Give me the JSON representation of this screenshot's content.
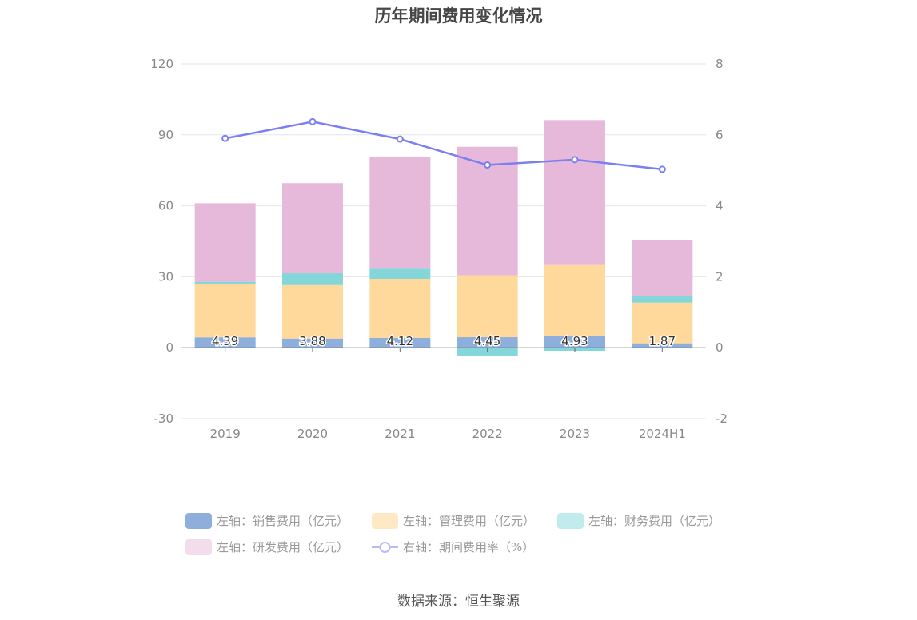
{
  "chart_data": {
    "type": "bar",
    "title": "历年期间费用变化情况",
    "categories": [
      "2019",
      "2020",
      "2021",
      "2022",
      "2023",
      "2024H1"
    ],
    "stacked": true,
    "series": [
      {
        "name": "左轴：销售费用（亿元）",
        "axis": "left",
        "type": "bar",
        "color": "#8eaedc",
        "values": [
          4.39,
          3.88,
          4.12,
          4.45,
          4.93,
          1.87
        ],
        "labels": [
          "4.39",
          "3.88",
          "4.12",
          "4.45",
          "4.93",
          "1.87"
        ]
      },
      {
        "name": "左轴：管理费用（亿元）",
        "axis": "left",
        "type": "bar",
        "color": "#ffd99b",
        "values": [
          22.5,
          22.6,
          25.0,
          26.2,
          30.0,
          17.2
        ]
      },
      {
        "name": "左轴：财务费用（亿元）",
        "axis": "left",
        "type": "bar",
        "color": "#84d6d9",
        "values": [
          1.0,
          5.0,
          4.3,
          -3.3,
          -1.3,
          2.8
        ]
      },
      {
        "name": "左轴：研发费用（亿元）",
        "axis": "left",
        "type": "bar",
        "color": "#e6b9db",
        "values": [
          33.2,
          38.1,
          47.4,
          54.3,
          61.3,
          23.8
        ]
      },
      {
        "name": "右轴：期间费用率（%）",
        "axis": "right",
        "type": "line",
        "color": "#7b7ff0",
        "values": [
          5.9,
          6.37,
          5.88,
          5.15,
          5.3,
          5.03
        ]
      }
    ],
    "yaxis_left": {
      "min": -30,
      "max": 120,
      "ticks": [
        "120",
        "90",
        "60",
        "30",
        "0",
        "-30"
      ]
    },
    "yaxis_right": {
      "min": -2,
      "max": 8,
      "ticks": [
        "8",
        "6",
        "4",
        "2",
        "0",
        "-2"
      ]
    },
    "legend_position": "bottom",
    "source": "数据来源：恒生聚源"
  }
}
